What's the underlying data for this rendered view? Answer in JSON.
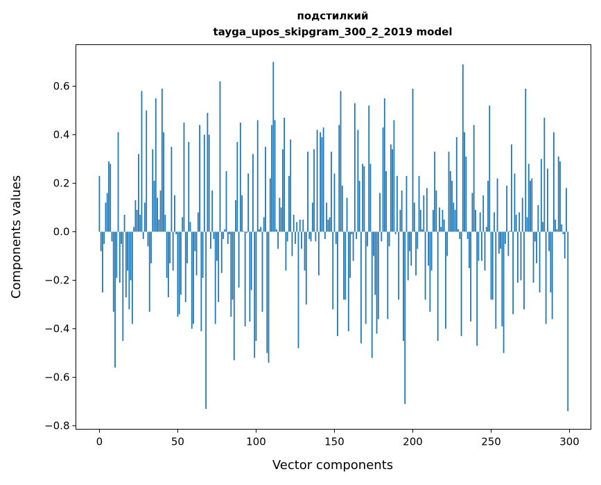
{
  "chart_data": {
    "type": "bar",
    "title": "подстилкий",
    "subtitle": "tayga_upos_skipgram_300_2_2019 model",
    "xlabel": "Vector components",
    "ylabel": "Components values",
    "xlim": [
      -15,
      313.7
    ],
    "ylim": [
      -0.814,
      0.771
    ],
    "xticks": [
      0,
      50,
      100,
      150,
      200,
      250,
      300
    ],
    "xtick_labels": [
      "0",
      "50",
      "100",
      "150",
      "200",
      "250",
      "300"
    ],
    "yticks": [
      -0.8,
      -0.6,
      -0.4,
      -0.2,
      0.0,
      0.2,
      0.4,
      0.6
    ],
    "ytick_labels": [
      "−0.8",
      "−0.6",
      "−0.4",
      "−0.2",
      "0.0",
      "0.2",
      "0.4",
      "0.6"
    ],
    "grid": false,
    "bar_color": "#1f77b4",
    "values": [
      0.23,
      -0.08,
      -0.25,
      -0.05,
      0.12,
      0.16,
      0.29,
      0.28,
      -0.04,
      -0.33,
      -0.56,
      -0.19,
      0.41,
      -0.21,
      -0.05,
      -0.45,
      0.07,
      -0.27,
      -0.16,
      -0.32,
      -0.2,
      -0.38,
      0.02,
      0.13,
      0.09,
      0.32,
      0.07,
      0.58,
      -0.03,
      0.12,
      0.5,
      -0.06,
      -0.33,
      -0.13,
      0.34,
      0.21,
      0.55,
      0.14,
      0.05,
      0.17,
      0.59,
      0.41,
      0.07,
      -0.19,
      -0.27,
      -0.13,
      0.35,
      -0.16,
      0.15,
      -0.01,
      -0.35,
      -0.34,
      -0.26,
      0.06,
      0.45,
      -0.29,
      -0.13,
      0.37,
      0.04,
      -0.4,
      -0.38,
      -0.08,
      -0.18,
      0.08,
      0.44,
      -0.41,
      -0.19,
      0.4,
      -0.73,
      0.49,
      0.4,
      -0.07,
      0.17,
      -0.03,
      -0.38,
      -0.12,
      -0.29,
      0.62,
      -0.17,
      -0.03,
      0.01,
      0.25,
      -0.05,
      -0.01,
      -0.35,
      -0.28,
      -0.53,
      0.13,
      0.37,
      -0.23,
      0.45,
      0.15,
      0.003,
      -0.39,
      -0.005,
      0.24,
      -0.37,
      -0.24,
      0.32,
      -0.52,
      -0.45,
      0.46,
      0.01,
      0.02,
      -0.33,
      0.06,
      0.35,
      -0.5,
      -0.54,
      0.22,
      0.44,
      0.7,
      0.46,
      0.01,
      -0.07,
      0.14,
      0.1,
      0.34,
      0.47,
      -0.16,
      -0.04,
      0.23,
      0.38,
      -0.1,
      0.07,
      -0.05,
      0.04,
      -0.48,
      0.05,
      -0.07,
      0.05,
      -0.16,
      -0.3,
      0.33,
      -0.03,
      -0.04,
      0.12,
      0.34,
      -0.04,
      0.42,
      -0.18,
      0.41,
      0.39,
      0.43,
      -0.03,
      0.12,
      0.05,
      0.06,
      0.33,
      -0.32,
      0.24,
      -0.05,
      -0.43,
      0.44,
      0.58,
      0.19,
      -0.28,
      -0.28,
      0.14,
      -0.41,
      -0.19,
      -0.01,
      -0.12,
      0.53,
      -0.03,
      0.42,
      0.21,
      -0.46,
      0.28,
      0.27,
      -0.38,
      -0.06,
      0.52,
      0.28,
      -0.52,
      -0.1,
      -0.26,
      -0.42,
      -0.36,
      0.16,
      -0.04,
      0.43,
      0.55,
      0.25,
      -0.36,
      -0.06,
      0.36,
      0.34,
      0.46,
      -0.01,
      0.23,
      -0.28,
      0.09,
      0.17,
      -0.45,
      -0.71,
      0.23,
      -0.2,
      -0.08,
      -0.14,
      0.59,
      0.12,
      -0.18,
      -0.07,
      0.23,
      0.09,
      0.01,
      0.15,
      -0.28,
      0.18,
      -0.14,
      -0.33,
      -0.16,
      0.09,
      0.33,
      0.17,
      -0.45,
      0.1,
      0.02,
      0.09,
      0.05,
      -0.4,
      -0.1,
      0.33,
      0.25,
      0.21,
      0.12,
      0.09,
      0.39,
      0.01,
      -0.03,
      -0.43,
      0.69,
      0.41,
      0.31,
      -0.03,
      -0.15,
      -0.37,
      0.16,
      0.44,
      0.09,
      -0.47,
      -0.12,
      0.08,
      -0.12,
      0.15,
      -0.16,
      0.02,
      0.21,
      0.52,
      -0.28,
      -0.28,
      0.08,
      -0.4,
      0.22,
      -0.09,
      -0.07,
      -0.39,
      -0.5,
      -0.05,
      0.19,
      -0.1,
      0.004,
      0.36,
      -0.34,
      0.24,
      0.07,
      -0.21,
      0.08,
      -0.2,
      0.14,
      -0.32,
      0.59,
      0.06,
      0.28,
      0.21,
      0.22,
      -0.21,
      -0.04,
      -0.13,
      0.11,
      -0.25,
      0.3,
      0.04,
      0.47,
      -0.38,
      0.26,
      -0.08,
      -0.25,
      -0.36,
      0.41,
      0.05,
      0.01,
      0.31,
      0.29,
      0.03,
      -0.01,
      -0.11,
      0.18,
      -0.74
    ]
  }
}
